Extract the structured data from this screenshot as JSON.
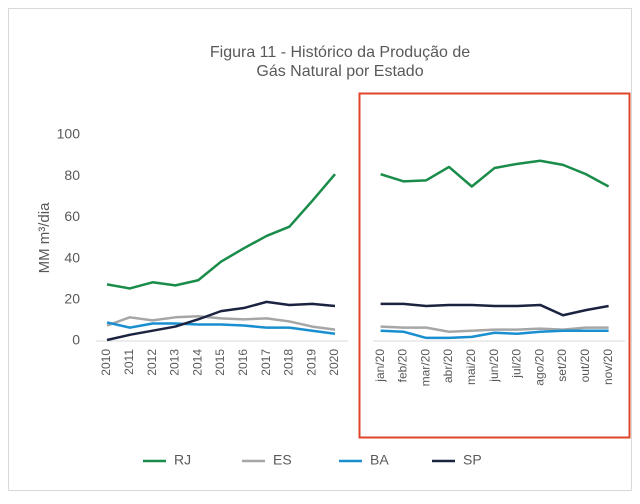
{
  "chart_data": {
    "type": "line",
    "title": [
      "Figura 11 - Histórico da Produção de",
      "Gás Natural por Estado"
    ],
    "y_label": "MM m³/dia",
    "categories": [
      "2010",
      "2011",
      "2012",
      "2013",
      "2014",
      "2015",
      "2016",
      "2017",
      "2018",
      "2019",
      "2020",
      null,
      "jan/20",
      "feb/20",
      "mar/20",
      "abr/20",
      "mai/20",
      "jun/20",
      "jul/20",
      "ago/20",
      "set/20",
      "out/20",
      "nov/20"
    ],
    "series": [
      {
        "name": "RJ",
        "color": "#1a8c4a",
        "values": [
          27.5,
          25.5,
          28.5,
          27,
          29.5,
          38.5,
          45,
          51,
          55.5,
          68,
          81,
          null,
          81,
          77.5,
          78,
          84.5,
          75,
          84,
          86,
          87.5,
          85.5,
          81,
          75
        ]
      },
      {
        "name": "ES",
        "color": "#a6a6a6",
        "values": [
          7.5,
          11.5,
          10,
          11.5,
          12,
          11,
          10.5,
          11,
          9.5,
          7,
          5.5,
          null,
          7,
          6.5,
          6.5,
          4.5,
          5,
          5.5,
          5.5,
          6,
          5.5,
          6.5,
          6.5
        ]
      },
      {
        "name": "BA",
        "color": "#1a8fd0",
        "values": [
          9,
          6.5,
          8.5,
          8.5,
          8,
          8,
          7.5,
          6.5,
          6.5,
          5,
          3.5,
          null,
          5,
          4.5,
          1.5,
          1.5,
          2,
          4,
          3.5,
          4.5,
          5,
          5,
          5
        ]
      },
      {
        "name": "SP",
        "color": "#1c2340",
        "values": [
          0.5,
          3,
          5,
          7,
          10.5,
          14.5,
          16,
          19,
          17.5,
          18,
          17,
          null,
          18,
          18,
          17,
          17.5,
          17.5,
          17,
          17,
          17.5,
          12.5,
          15,
          17
        ]
      }
    ],
    "ylim": [
      0,
      100
    ],
    "yticks": [
      0,
      20,
      40,
      60,
      80,
      100
    ],
    "grid": false,
    "legend": "bottom"
  }
}
